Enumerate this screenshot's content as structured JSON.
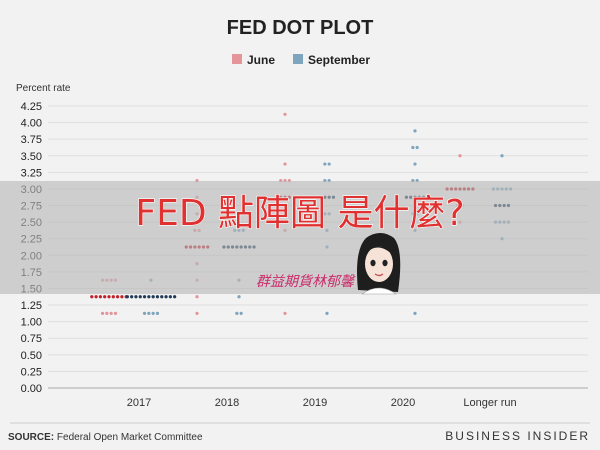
{
  "chart_data": {
    "type": "scatter",
    "title": "FED DOT PLOT",
    "ylabel": "Percent rate",
    "xlabel": "",
    "ylim": [
      0,
      4.25
    ],
    "yticks": [
      "0.00",
      "0.25",
      "0.50",
      "0.75",
      "1.00",
      "1.25",
      "1.50",
      "1.75",
      "2.00",
      "2.25",
      "2.50",
      "2.75",
      "3.00",
      "3.25",
      "3.50",
      "3.75",
      "4.00",
      "4.25"
    ],
    "categories": [
      "2017",
      "2018",
      "2019",
      "2020",
      "Longer run"
    ],
    "grid": true,
    "legend_position": "top-center",
    "series": [
      {
        "name": "June",
        "color": "#e3959a",
        "median_color": "#c0202a",
        "median": [
          1.375,
          2.125,
          2.875,
          null,
          3.0
        ],
        "values": [
          [
            [
              1.125,
              4
            ],
            [
              1.375,
              9
            ],
            [
              1.625,
              4
            ]
          ],
          [
            [
              1.125,
              1
            ],
            [
              1.375,
              1
            ],
            [
              1.625,
              1
            ],
            [
              1.875,
              1
            ],
            [
              2.125,
              6
            ],
            [
              2.375,
              2
            ],
            [
              2.625,
              1
            ],
            [
              2.875,
              1
            ],
            [
              3.125,
              1
            ]
          ],
          [
            [
              1.125,
              1
            ],
            [
              2.375,
              1
            ],
            [
              2.625,
              1
            ],
            [
              2.875,
              3
            ],
            [
              3.125,
              3
            ],
            [
              3.375,
              1
            ],
            [
              4.125,
              1
            ]
          ],
          [],
          [
            [
              2.5,
              1
            ],
            [
              2.75,
              2
            ],
            [
              3.0,
              7
            ],
            [
              3.5,
              1
            ]
          ]
        ]
      },
      {
        "name": "September",
        "color": "#7fa4bd",
        "median_color": "#1f3a56",
        "median": [
          1.375,
          2.125,
          2.875,
          2.875,
          2.75
        ],
        "values": [
          [
            [
              1.125,
              4
            ],
            [
              1.375,
              12
            ],
            [
              1.625,
              1
            ]
          ],
          [
            [
              1.125,
              2
            ],
            [
              1.375,
              1
            ],
            [
              1.625,
              1
            ],
            [
              2.125,
              8
            ],
            [
              2.375,
              3
            ],
            [
              2.625,
              1
            ]
          ],
          [
            [
              1.125,
              1
            ],
            [
              2.125,
              1
            ],
            [
              2.375,
              1
            ],
            [
              2.625,
              2
            ],
            [
              2.875,
              4
            ],
            [
              3.125,
              2
            ],
            [
              3.375,
              2
            ]
          ],
          [
            [
              1.125,
              1
            ],
            [
              2.375,
              1
            ],
            [
              2.625,
              2
            ],
            [
              2.875,
              5
            ],
            [
              3.125,
              2
            ],
            [
              3.375,
              1
            ],
            [
              3.625,
              2
            ],
            [
              3.875,
              1
            ]
          ],
          [
            [
              2.25,
              1
            ],
            [
              2.5,
              4
            ],
            [
              2.75,
              4
            ],
            [
              3.0,
              5
            ],
            [
              3.5,
              1
            ]
          ]
        ]
      }
    ]
  },
  "overlay": {
    "banner_text": "FED 點陣圖 是什麼?",
    "signature": "群益期貨林郁馨"
  },
  "footer": {
    "source_label": "SOURCE:",
    "source_text": " Federal Open Market Committee",
    "brand": "BUSINESS INSIDER"
  }
}
